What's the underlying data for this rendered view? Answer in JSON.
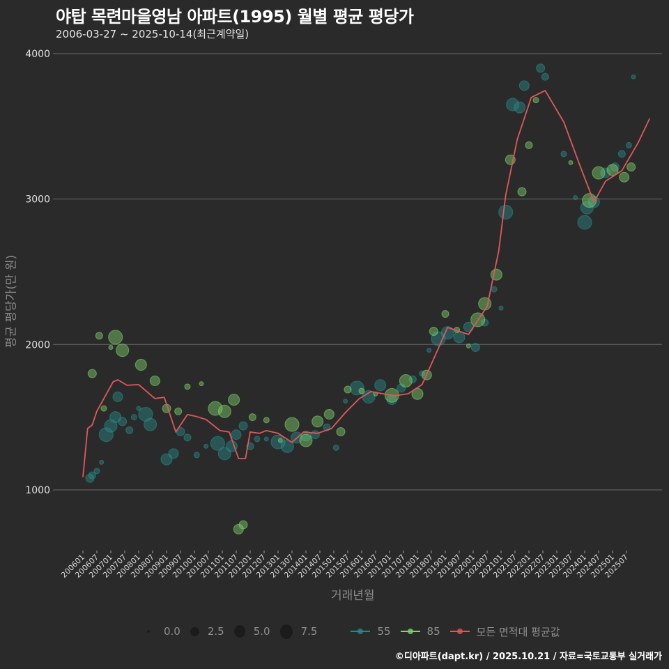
{
  "header": {
    "title": "야탑 목련마을영남 아파트(1995) 월별 평균 평당가",
    "subtitle": "2006-03-27 ~ 2025-10-14(최근계약일)"
  },
  "axes": {
    "ylabel": "평균 평당가(만 원)",
    "xlabel": "거래년월",
    "yticks": [
      "1000",
      "2000",
      "3000",
      "4000"
    ],
    "xticks": [
      "200601",
      "200607",
      "200701",
      "200707",
      "200801",
      "200807",
      "200901",
      "200907",
      "201001",
      "201007",
      "201101",
      "201107",
      "201201",
      "201207",
      "201301",
      "201307",
      "201401",
      "201407",
      "201501",
      "201507",
      "201601",
      "201607",
      "201701",
      "201707",
      "201801",
      "201807",
      "201901",
      "201907",
      "202001",
      "202007",
      "202101",
      "202107",
      "202201",
      "202207",
      "202301",
      "202307",
      "202401",
      "202407",
      "202501",
      "202507"
    ]
  },
  "legend": {
    "size": [
      {
        "label": "0.0",
        "r": 2
      },
      {
        "label": "2.5",
        "r": 6
      },
      {
        "label": "5.0",
        "r": 8
      },
      {
        "label": "7.5",
        "r": 10
      }
    ],
    "series": [
      {
        "label": "55",
        "color": "#2a8a8a"
      },
      {
        "label": "85",
        "color": "#7ed36a"
      },
      {
        "label": "모든 면적대 평균값",
        "color": "#e0585a"
      }
    ]
  },
  "caption": "©디아파트(dapt.kr) / 2025.10.21 / 자료=국토교통부 실거래가",
  "colors": {
    "background": "#2b2a2b",
    "grid": "#6a6a6a",
    "series_55": "#2a8a8a",
    "series_85": "#7ed36a",
    "average": "#e0585a"
  },
  "chart_data": {
    "type": "scatter",
    "title": "야탑 목련마을영남 아파트(1995) 월별 평균 평당가",
    "subtitle": "2006-03-27 ~ 2025-10-14(최근계약일)",
    "xlabel": "거래년월",
    "ylabel": "평균 평당가(만 원)",
    "ylim": [
      600,
      4050
    ],
    "yticks": [
      1000,
      2000,
      3000,
      4000
    ],
    "grid": true,
    "legend_position": "bottom",
    "size_legend": [
      0.0,
      2.5,
      5.0,
      7.5
    ],
    "series": [
      {
        "name": "모든 면적대 평균값",
        "type": "line",
        "color": "#e0585a",
        "points": [
          [
            "2006-01",
            1087
          ],
          [
            "2006-03",
            1422
          ],
          [
            "2006-05",
            1446
          ],
          [
            "2006-07",
            1541
          ],
          [
            "2007-02",
            1743
          ],
          [
            "2007-04",
            1757
          ],
          [
            "2007-08",
            1719
          ],
          [
            "2008-01",
            1724
          ],
          [
            "2008-08",
            1628
          ],
          [
            "2008-12",
            1637
          ],
          [
            "2009-05",
            1398
          ],
          [
            "2009-10",
            1518
          ],
          [
            "2010-02",
            1504
          ],
          [
            "2010-06",
            1484
          ],
          [
            "2011-00",
            1408
          ],
          [
            "2011-04",
            1398
          ],
          [
            "2011-08",
            1216
          ],
          [
            "2011-11",
            1216
          ],
          [
            "2012-01",
            1398
          ],
          [
            "2012-05",
            1389
          ],
          [
            "2012-08",
            1408
          ],
          [
            "2013-01",
            1389
          ],
          [
            "2013-07",
            1327
          ],
          [
            "2014-00",
            1398
          ],
          [
            "2014-06",
            1389
          ],
          [
            "2015-00",
            1422
          ],
          [
            "2015-06",
            1532
          ],
          [
            "2016-00",
            1628
          ],
          [
            "2016-05",
            1676
          ],
          [
            "2017-03",
            1647
          ],
          [
            "2017-09",
            1661
          ],
          [
            "2018-03",
            1724
          ],
          [
            "2018-08",
            1901
          ],
          [
            "2019-02",
            2117
          ],
          [
            "2019-11",
            2069
          ],
          [
            "2020-07",
            2261
          ],
          [
            "2020-12",
            2644
          ],
          [
            "2021-03",
            3027
          ],
          [
            "2021-08",
            3410
          ],
          [
            "2022-02",
            3698
          ],
          [
            "2022-08",
            3746
          ],
          [
            "2023-04",
            3530
          ],
          [
            "2023-11",
            3229
          ],
          [
            "2024-05",
            2980
          ],
          [
            "2024-10",
            3123
          ],
          [
            "2025-05",
            3195
          ],
          [
            "2025-12",
            3387
          ],
          [
            "2026-05",
            3554
          ]
        ]
      },
      {
        "name": "55",
        "type": "scatter",
        "color": "#2a8a8a",
        "points": [
          [
            "2006-04",
            1080
          ],
          [
            "2006-05",
            1100
          ],
          [
            "2006-07",
            1130
          ],
          [
            "2006-09",
            1190
          ],
          [
            "2006-11",
            1380
          ],
          [
            "2007-01",
            1440
          ],
          [
            "2007-03",
            1500
          ],
          [
            "2007-04",
            1640
          ],
          [
            "2007-06",
            1470
          ],
          [
            "2007-09",
            1410
          ],
          [
            "2007-11",
            1500
          ],
          [
            "2008-01",
            1560
          ],
          [
            "2008-04",
            1520
          ],
          [
            "2008-06",
            1450
          ],
          [
            "2009-01",
            1210
          ],
          [
            "2009-04",
            1250
          ],
          [
            "2009-07",
            1400
          ],
          [
            "2009-10",
            1360
          ],
          [
            "2010-02",
            1240
          ],
          [
            "2010-06",
            1300
          ],
          [
            "2010-11",
            1320
          ],
          [
            "2011-02",
            1250
          ],
          [
            "2011-05",
            1300
          ],
          [
            "2011-07",
            1380
          ],
          [
            "2011-10",
            1440
          ],
          [
            "2012-01",
            1300
          ],
          [
            "2012-04",
            1350
          ],
          [
            "2012-08",
            1350
          ],
          [
            "2013-01",
            1330
          ],
          [
            "2013-05",
            1300
          ],
          [
            "2013-09",
            1360
          ],
          [
            "2014-01",
            1370
          ],
          [
            "2014-05",
            1380
          ],
          [
            "2014-10",
            1430
          ],
          [
            "2015-02",
            1290
          ],
          [
            "2015-06",
            1610
          ],
          [
            "2015-11",
            1700
          ],
          [
            "2016-04",
            1640
          ],
          [
            "2016-09",
            1720
          ],
          [
            "2017-02",
            1620
          ],
          [
            "2017-06",
            1700
          ],
          [
            "2017-11",
            1760
          ],
          [
            "2018-03",
            1800
          ],
          [
            "2018-06",
            1960
          ],
          [
            "2018-10",
            2040
          ],
          [
            "2019-02",
            2080
          ],
          [
            "2019-07",
            2050
          ],
          [
            "2019-11",
            2120
          ],
          [
            "2020-02",
            1980
          ],
          [
            "2020-06",
            2150
          ],
          [
            "2020-10",
            2380
          ],
          [
            "2021-01",
            2250
          ],
          [
            "2021-03",
            2910
          ],
          [
            "2021-06",
            3650
          ],
          [
            "2021-09",
            3630
          ],
          [
            "2021-11",
            3780
          ],
          [
            "2022-06",
            3900
          ],
          [
            "2022-08",
            3840
          ],
          [
            "2023-04",
            3310
          ],
          [
            "2023-09",
            3010
          ],
          [
            "2024-01",
            2840
          ],
          [
            "2024-02",
            2940
          ],
          [
            "2024-05",
            2980
          ],
          [
            "2024-10",
            3180
          ],
          [
            "2025-02",
            3220
          ],
          [
            "2025-05",
            3310
          ],
          [
            "2025-08",
            3370
          ],
          [
            "2025-10",
            3840
          ]
        ]
      },
      {
        "name": "85",
        "type": "scatter",
        "color": "#7ed36a",
        "points": [
          [
            "2006-05",
            1800
          ],
          [
            "2006-08",
            2060
          ],
          [
            "2006-10",
            1560
          ],
          [
            "2007-01",
            1980
          ],
          [
            "2007-03",
            2050
          ],
          [
            "2007-06",
            1960
          ],
          [
            "2008-02",
            1860
          ],
          [
            "2008-08",
            1750
          ],
          [
            "2009-01",
            1560
          ],
          [
            "2009-06",
            1540
          ],
          [
            "2009-10",
            1710
          ],
          [
            "2010-04",
            1730
          ],
          [
            "2010-10",
            1560
          ],
          [
            "2011-02",
            1540
          ],
          [
            "2011-06",
            1620
          ],
          [
            "2011-08",
            730
          ],
          [
            "2011-10",
            760
          ],
          [
            "2012-02",
            1500
          ],
          [
            "2012-08",
            1480
          ],
          [
            "2013-02",
            1340
          ],
          [
            "2013-07",
            1450
          ],
          [
            "2014-01",
            1340
          ],
          [
            "2014-06",
            1470
          ],
          [
            "2014-11",
            1520
          ],
          [
            "2015-04",
            1400
          ],
          [
            "2015-07",
            1690
          ],
          [
            "2016-01",
            1680
          ],
          [
            "2016-07",
            1660
          ],
          [
            "2017-02",
            1650
          ],
          [
            "2017-08",
            1750
          ],
          [
            "2018-01",
            1660
          ],
          [
            "2018-05",
            1790
          ],
          [
            "2018-08",
            2090
          ],
          [
            "2019-01",
            2210
          ],
          [
            "2019-06",
            2100
          ],
          [
            "2019-11",
            1990
          ],
          [
            "2020-03",
            2170
          ],
          [
            "2020-06",
            2280
          ],
          [
            "2020-11",
            2480
          ],
          [
            "2021-05",
            3270
          ],
          [
            "2021-10",
            3050
          ],
          [
            "2022-01",
            3370
          ],
          [
            "2022-04",
            3680
          ],
          [
            "2023-07",
            3250
          ],
          [
            "2024-03",
            2990
          ],
          [
            "2024-07",
            3180
          ],
          [
            "2025-01",
            3200
          ],
          [
            "2025-06",
            3150
          ],
          [
            "2025-09",
            3220
          ]
        ]
      }
    ],
    "categories": [
      "200601",
      "200607",
      "200701",
      "200707",
      "200801",
      "200807",
      "200901",
      "200907",
      "201001",
      "201007",
      "201101",
      "201107",
      "201201",
      "201207",
      "201301",
      "201307",
      "201401",
      "201407",
      "201501",
      "201507",
      "201601",
      "201607",
      "201701",
      "201707",
      "201801",
      "201807",
      "201901",
      "201907",
      "202001",
      "202007",
      "202101",
      "202107",
      "202201",
      "202207",
      "202301",
      "202307",
      "202401",
      "202407",
      "202501",
      "202507"
    ]
  }
}
